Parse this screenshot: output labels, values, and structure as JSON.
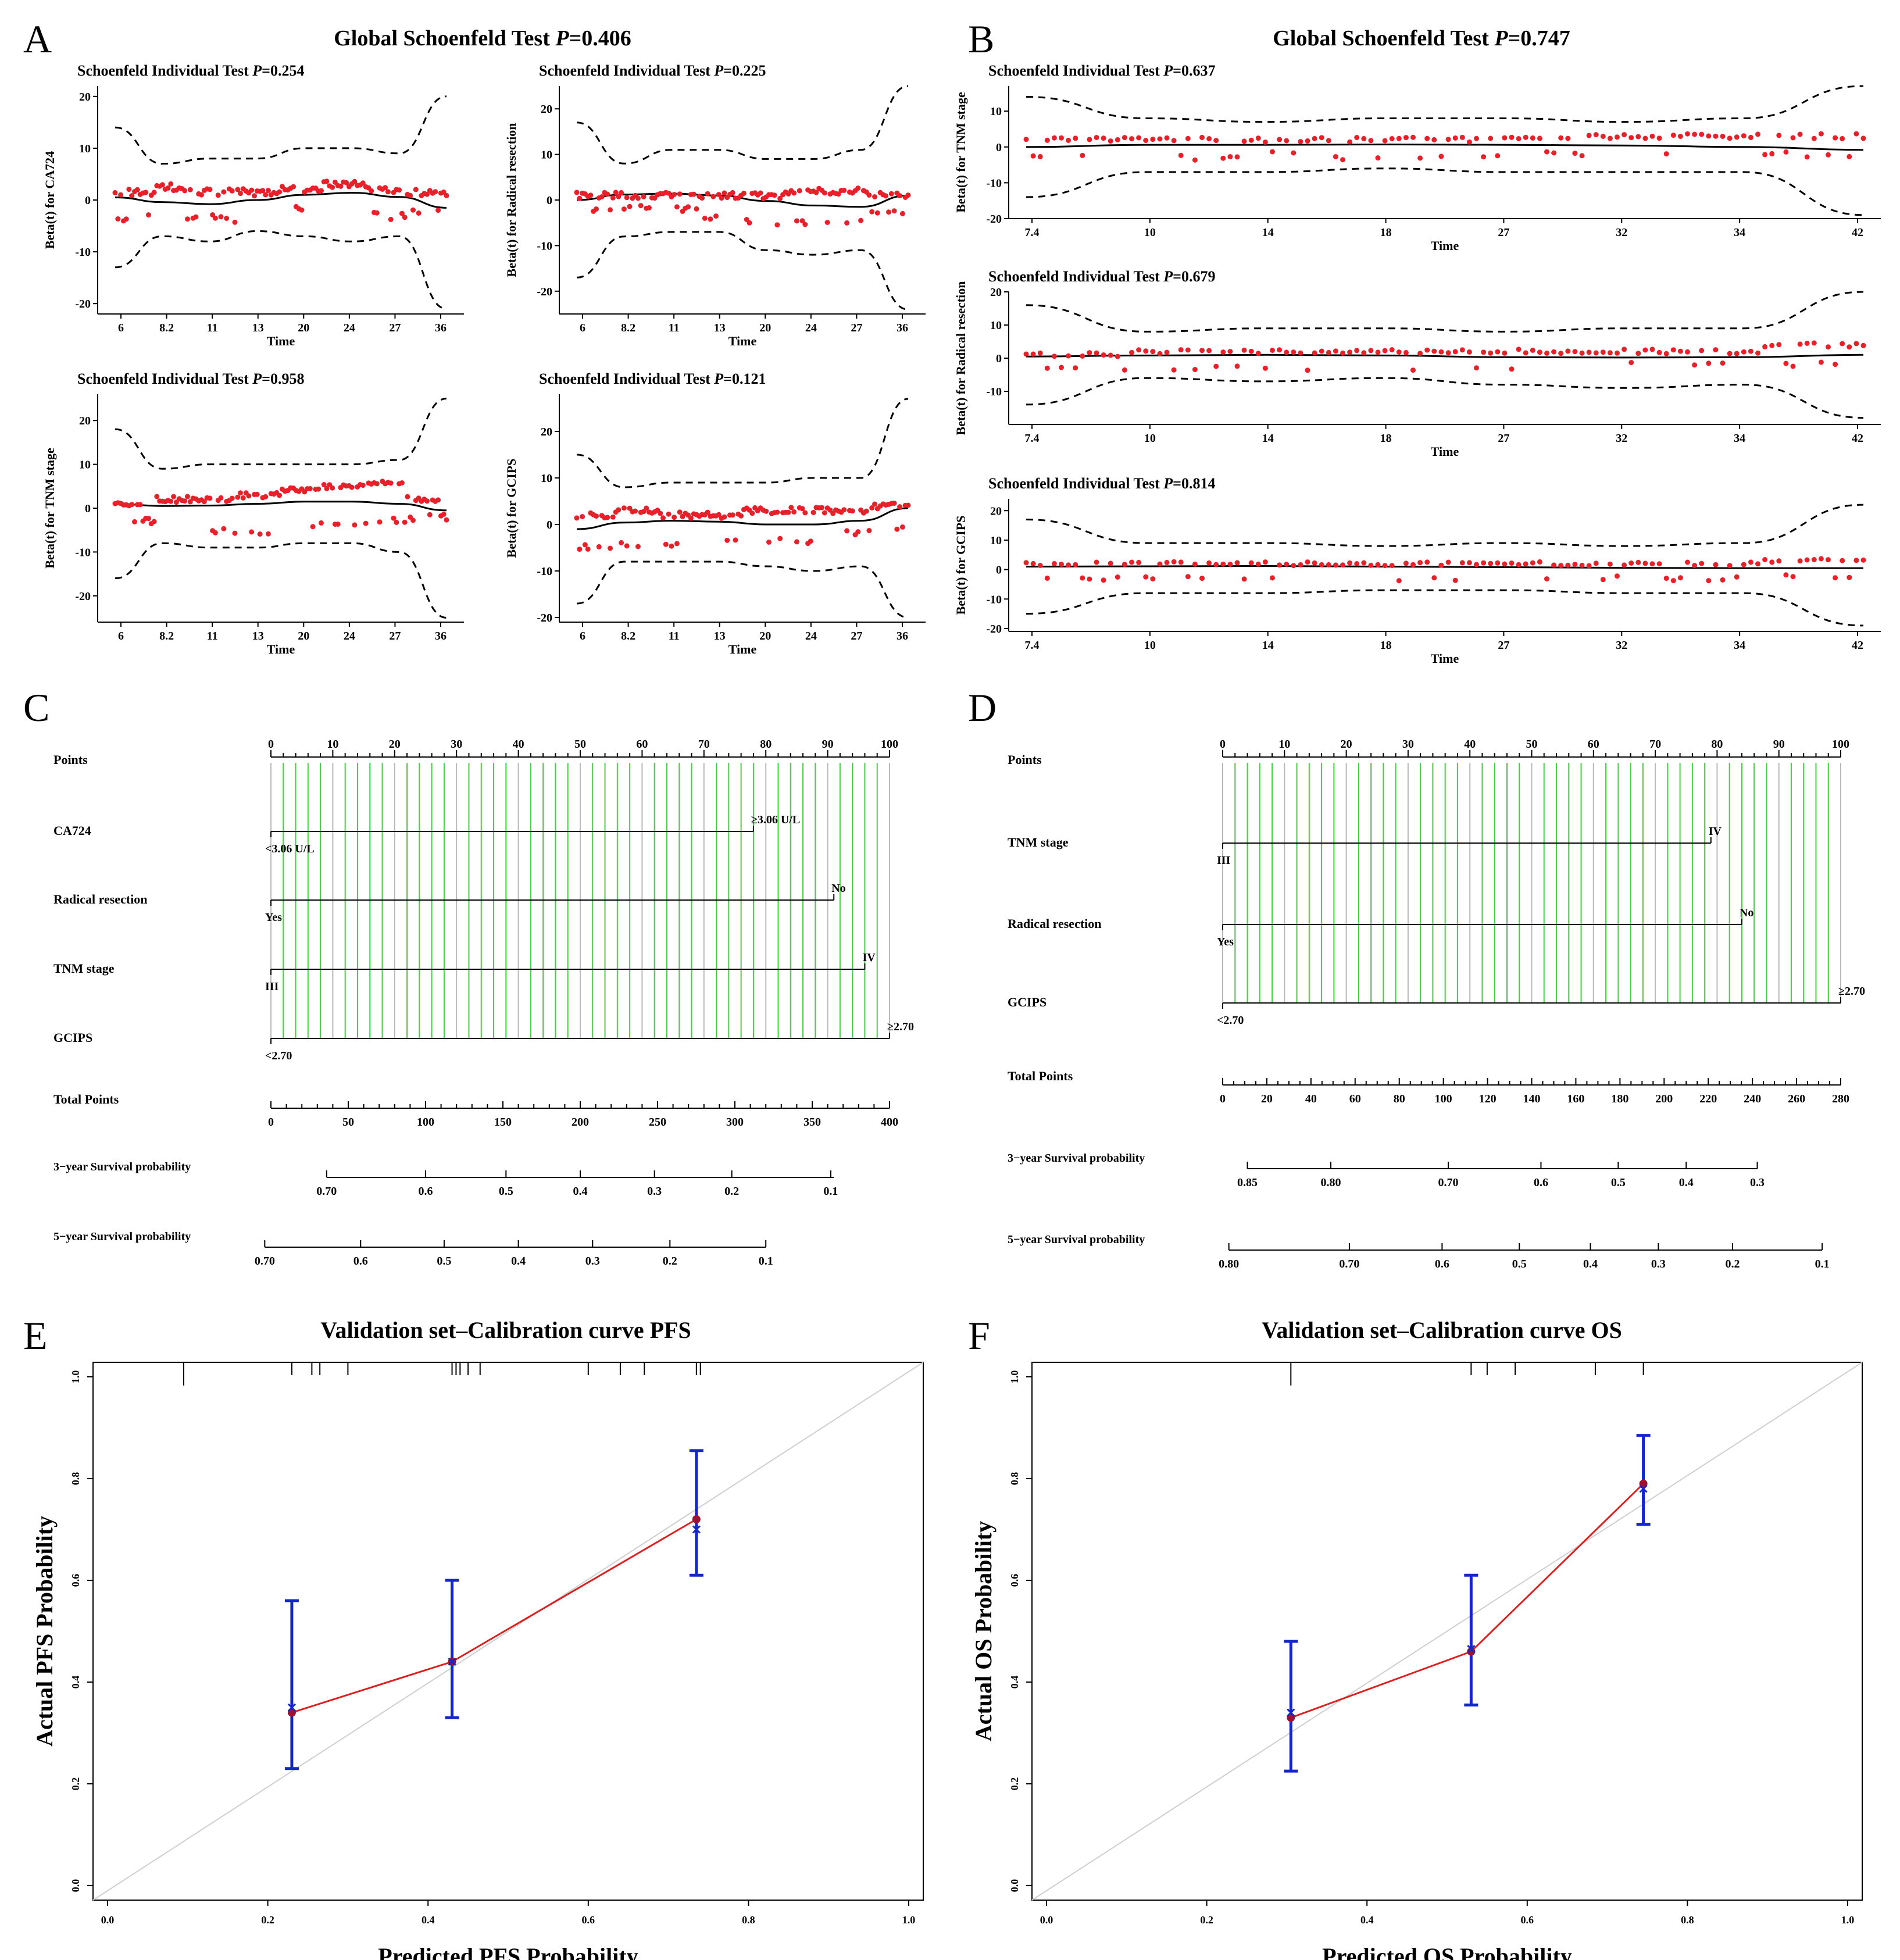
{
  "panel_letters": [
    "A",
    "B",
    "C",
    "D",
    "E",
    "F"
  ],
  "chart_data": [
    {
      "id": "A",
      "type": "scatter",
      "subtype": "schoenfeld",
      "global_title": "Global Schoenfeld Test P=0.406",
      "global_title_parts": [
        "Global Schoenfeld Test ",
        "P",
        "=0.406"
      ],
      "time_ticks": [
        "6",
        "8.2",
        "11",
        "13",
        "20",
        "24",
        "27",
        "36"
      ],
      "xlabel": "Time",
      "plots": [
        {
          "title_parts": [
            "Schoenfeld Individual Test ",
            "P",
            "=0.254"
          ],
          "ylabel": "Beta(t) for CA724",
          "ylim": [
            -22,
            22
          ],
          "yticks": [
            -20,
            -10,
            0,
            10,
            20
          ],
          "upper": [
            14,
            7,
            8,
            8,
            10,
            10,
            9,
            20
          ],
          "lower": [
            -13,
            -7,
            -8,
            -6,
            -7,
            -8,
            -7,
            -21
          ],
          "fit": [
            0.5,
            -0.4,
            -0.8,
            0,
            1,
            1.4,
            0.6,
            -1.5
          ],
          "clusters": [
            [
              1.5,
              -3.5
            ],
            [
              2.5,
              -3.5
            ],
            [
              1.5,
              -3.5
            ],
            [
              1.5,
              -2
            ],
            [
              2,
              -1.5
            ],
            [
              3,
              -2
            ],
            [
              2,
              -3
            ],
            [
              1.5,
              -2
            ]
          ]
        },
        {
          "title_parts": [
            "Schoenfeld Individual Test ",
            "P",
            "=0.225"
          ],
          "ylabel": "Beta(t) for Radical resection",
          "ylim": [
            -25,
            25
          ],
          "yticks": [
            -20,
            -10,
            0,
            10,
            20
          ],
          "upper": [
            17,
            8,
            11,
            11,
            9,
            9,
            11,
            25
          ],
          "lower": [
            -17,
            -8,
            -7,
            -7,
            -11,
            -12,
            -11,
            -24
          ],
          "fit": [
            0,
            1.2,
            1.4,
            1,
            -0.2,
            -1.2,
            -1.5,
            1
          ],
          "clusters": [
            [
              1,
              -2
            ],
            [
              1,
              -2
            ],
            [
              1,
              -2
            ],
            [
              1,
              -4
            ],
            [
              1,
              -5
            ],
            [
              2,
              -5
            ],
            [
              2,
              -5
            ],
            [
              1,
              -3
            ]
          ]
        },
        {
          "title_parts": [
            "Schoenfeld Individual Test ",
            "P",
            "=0.958"
          ],
          "ylabel": "Beta(t) for TNM stage",
          "ylim": [
            -26,
            26
          ],
          "yticks": [
            -20,
            -10,
            0,
            10,
            20
          ],
          "upper": [
            18,
            9,
            10,
            10,
            10,
            10,
            11,
            25
          ],
          "lower": [
            -16,
            -8,
            -9,
            -9,
            -8,
            -8,
            -10,
            -25
          ],
          "fit": [
            1,
            0.5,
            0.6,
            1,
            1.5,
            1.5,
            1,
            -0.5
          ],
          "clusters": [
            [
              1,
              -3
            ],
            [
              2,
              -6
            ],
            [
              2,
              -5
            ],
            [
              3,
              -6
            ],
            [
              4,
              -4
            ],
            [
              5,
              -4
            ],
            [
              6,
              -3
            ],
            [
              2,
              -2
            ]
          ]
        },
        {
          "title_parts": [
            "Schoenfeld Individual Test ",
            "P",
            "=0.121"
          ],
          "ylabel": "Beta(t) for GCIPS",
          "ylim": [
            -21,
            28
          ],
          "yticks": [
            -20,
            -10,
            0,
            10,
            20
          ],
          "upper": [
            15,
            8,
            9,
            9,
            9,
            10,
            10,
            27
          ],
          "lower": [
            -17,
            -8,
            -8,
            -8,
            -9,
            -10,
            -9,
            -20
          ],
          "fit": [
            -1,
            0.4,
            0.8,
            0.6,
            0,
            0,
            0.8,
            3.5
          ],
          "clusters": [
            [
              2,
              -5
            ],
            [
              3,
              -4
            ],
            [
              2,
              -4
            ],
            [
              2,
              -3
            ],
            [
              3,
              -3
            ],
            [
              3,
              -4
            ],
            [
              3,
              -2
            ],
            [
              4,
              -1
            ]
          ]
        }
      ]
    },
    {
      "id": "B",
      "type": "scatter",
      "subtype": "schoenfeld",
      "global_title": "Global Schoenfeld Test P=0.747",
      "global_title_parts": [
        "Global Schoenfeld Test ",
        "P",
        "=0.747"
      ],
      "time_ticks": [
        "7.4",
        "10",
        "14",
        "18",
        "27",
        "32",
        "34",
        "42"
      ],
      "xlabel": "Time",
      "plots": [
        {
          "title_parts": [
            "Schoenfeld Individual Test ",
            "P",
            "=0.637"
          ],
          "ylabel": "Beta(t) for TNM stage",
          "ylim": [
            -20,
            17
          ],
          "yticks": [
            -20,
            -10,
            0,
            10
          ],
          "upper": [
            14,
            8,
            7,
            8,
            8,
            7,
            8,
            17
          ],
          "lower": [
            -14,
            -7,
            -7,
            -6,
            -7,
            -7,
            -7,
            -19
          ],
          "fit": [
            0,
            0.6,
            0.6,
            0.7,
            0.6,
            0.4,
            0,
            -0.8
          ],
          "clusters": [
            [
              2,
              -3
            ],
            [
              2,
              -3
            ],
            [
              2,
              -2
            ],
            [
              2,
              -3
            ],
            [
              2,
              -2
            ],
            [
              3,
              -2
            ],
            [
              3,
              -2
            ],
            [
              3,
              -2
            ]
          ]
        },
        {
          "title_parts": [
            "Schoenfeld Individual Test ",
            "P",
            "=0.679"
          ],
          "ylabel": "Beta(t) for Radical resection",
          "ylim": [
            -20,
            20
          ],
          "yticks": [
            -10,
            0,
            10,
            20
          ],
          "upper": [
            16,
            8,
            9,
            9,
            8,
            9,
            9,
            20
          ],
          "lower": [
            -14,
            -6,
            -7,
            -6,
            -8,
            -9,
            -8,
            -18
          ],
          "fit": [
            0.5,
            0.8,
            1,
            0.8,
            0.3,
            0.2,
            0.3,
            1
          ],
          "clusters": [
            [
              1,
              -3
            ],
            [
              2,
              -3
            ],
            [
              2,
              -3
            ],
            [
              2,
              -3
            ],
            [
              2,
              -3
            ],
            [
              2,
              -2
            ],
            [
              2,
              -2
            ],
            [
              4,
              -2
            ]
          ]
        },
        {
          "title_parts": [
            "Schoenfeld Individual Test ",
            "P",
            "=0.814"
          ],
          "ylabel": "Beta(t) for GCIPS",
          "ylim": [
            -21,
            24
          ],
          "yticks": [
            -20,
            -10,
            0,
            10,
            20
          ],
          "upper": [
            17,
            9,
            9,
            8,
            9,
            8,
            9,
            22
          ],
          "lower": [
            -15,
            -8,
            -8,
            -7,
            -7,
            -8,
            -8,
            -19
          ],
          "fit": [
            1,
            1.1,
            1.2,
            1,
            0.8,
            0.6,
            0.5,
            0.5
          ],
          "clusters": [
            [
              2,
              -3
            ],
            [
              2,
              -3
            ],
            [
              2,
              -3
            ],
            [
              2,
              -3
            ],
            [
              2,
              -3
            ],
            [
              2,
              -3
            ],
            [
              2,
              -3
            ],
            [
              3,
              -2
            ]
          ]
        }
      ]
    },
    {
      "id": "C",
      "type": "nomogram",
      "points_label": "Points",
      "points_ticks": [
        "0",
        "10",
        "20",
        "30",
        "40",
        "50",
        "60",
        "70",
        "80",
        "90",
        "100"
      ],
      "rows": [
        {
          "label": "CA724",
          "max": 78,
          "low": "<3.06 U/L",
          "high": "≥3.06 U/L"
        },
        {
          "label": "Radical resection",
          "max": 91,
          "low": "Yes",
          "high": "No"
        },
        {
          "label": "TNM stage",
          "max": 96,
          "low": "III",
          "high": "IV"
        },
        {
          "label": "GCIPS",
          "max": 100,
          "low": "<2.70",
          "high": "≥2.70"
        }
      ],
      "total": {
        "label": "Total Points",
        "max": 400,
        "ticks": [
          "0",
          "50",
          "100",
          "150",
          "200",
          "250",
          "300",
          "350",
          "400"
        ]
      },
      "surv": [
        {
          "label": "3−year Survival probability",
          "start": 0.09,
          "end": 0.91,
          "ticks": [
            {
              "t": "0.70",
              "p": 0.09
            },
            {
              "t": "0.6",
              "p": 0.25
            },
            {
              "t": "0.5",
              "p": 0.38
            },
            {
              "t": "0.4",
              "p": 0.5
            },
            {
              "t": "0.3",
              "p": 0.62
            },
            {
              "t": "0.2",
              "p": 0.745
            },
            {
              "t": "0.1",
              "p": 0.905
            }
          ]
        },
        {
          "label": "5−year Survival probability",
          "start": -0.01,
          "end": 0.8,
          "ticks": [
            {
              "t": "0.70",
              "p": -0.01
            },
            {
              "t": "0.6",
              "p": 0.145
            },
            {
              "t": "0.5",
              "p": 0.28
            },
            {
              "t": "0.4",
              "p": 0.4
            },
            {
              "t": "0.3",
              "p": 0.52
            },
            {
              "t": "0.2",
              "p": 0.645
            },
            {
              "t": "0.1",
              "p": 0.8
            }
          ]
        }
      ]
    },
    {
      "id": "D",
      "type": "nomogram",
      "points_label": "Points",
      "points_ticks": [
        "0",
        "10",
        "20",
        "30",
        "40",
        "50",
        "60",
        "70",
        "80",
        "90",
        "100"
      ],
      "rows": [
        {
          "label": "TNM stage",
          "max": 79,
          "low": "III",
          "high": "IV"
        },
        {
          "label": "Radical resection",
          "max": 84,
          "low": "Yes",
          "high": "No"
        },
        {
          "label": "GCIPS",
          "max": 100,
          "low": "<2.70",
          "high": "≥2.70"
        }
      ],
      "total": {
        "label": "Total Points",
        "max": 280,
        "ticks": [
          "0",
          "20",
          "40",
          "60",
          "80",
          "100",
          "120",
          "140",
          "160",
          "180",
          "200",
          "220",
          "240",
          "260",
          "280"
        ]
      },
      "surv": [
        {
          "label": "3−year Survival probability",
          "start": 0.04,
          "end": 0.865,
          "ticks": [
            {
              "t": "0.85",
              "p": 0.04
            },
            {
              "t": "0.80",
              "p": 0.175
            },
            {
              "t": "0.70",
              "p": 0.365
            },
            {
              "t": "0.6",
              "p": 0.515
            },
            {
              "t": "0.5",
              "p": 0.64
            },
            {
              "t": "0.4",
              "p": 0.75
            },
            {
              "t": "0.3",
              "p": 0.865
            }
          ]
        },
        {
          "label": "5−year Survival probability",
          "start": 0.01,
          "end": 0.97,
          "ticks": [
            {
              "t": "0.80",
              "p": 0.01
            },
            {
              "t": "0.70",
              "p": 0.205
            },
            {
              "t": "0.6",
              "p": 0.355
            },
            {
              "t": "0.5",
              "p": 0.48
            },
            {
              "t": "0.4",
              "p": 0.595
            },
            {
              "t": "0.3",
              "p": 0.705
            },
            {
              "t": "0.2",
              "p": 0.825
            },
            {
              "t": "0.1",
              "p": 0.97
            }
          ]
        }
      ]
    },
    {
      "id": "E",
      "type": "line",
      "subtype": "calibration",
      "title": "Validation set–Calibration curve PFS",
      "xlabel": "Predicted PFS Probability",
      "ylabel": "Actual PFS Probability",
      "xlim": [
        0,
        1
      ],
      "ylim": [
        0,
        1
      ],
      "ticks": [
        "0.0",
        "0.2",
        "0.4",
        "0.6",
        "0.8",
        "1.0"
      ],
      "points": [
        {
          "x": 0.23,
          "y": 0.34,
          "lo": 0.23,
          "hi": 0.56,
          "cross": 0.35
        },
        {
          "x": 0.43,
          "y": 0.44,
          "lo": 0.33,
          "hi": 0.6,
          "cross": 0.44
        },
        {
          "x": 0.735,
          "y": 0.72,
          "lo": 0.61,
          "hi": 0.855,
          "cross": 0.7
        }
      ],
      "rug": [
        0.095,
        0.23,
        0.255,
        0.265,
        0.3,
        0.43,
        0.435,
        0.44,
        0.45,
        0.465,
        0.6,
        0.64,
        0.67,
        0.735,
        0.74
      ]
    },
    {
      "id": "F",
      "type": "line",
      "subtype": "calibration",
      "title": "Validation set–Calibration curve OS",
      "xlabel": "Predicted OS Probability",
      "ylabel": "Actual OS Probability",
      "xlim": [
        0,
        1
      ],
      "ylim": [
        0,
        1
      ],
      "ticks": [
        "0.0",
        "0.2",
        "0.4",
        "0.6",
        "0.8",
        "1.0"
      ],
      "points": [
        {
          "x": 0.305,
          "y": 0.33,
          "lo": 0.225,
          "hi": 0.48,
          "cross": 0.34
        },
        {
          "x": 0.53,
          "y": 0.46,
          "lo": 0.355,
          "hi": 0.61,
          "cross": 0.465
        },
        {
          "x": 0.745,
          "y": 0.79,
          "lo": 0.71,
          "hi": 0.885,
          "cross": 0.78
        }
      ],
      "rug": [
        0.305,
        0.53,
        0.55,
        0.585,
        0.685,
        0.745
      ]
    }
  ]
}
